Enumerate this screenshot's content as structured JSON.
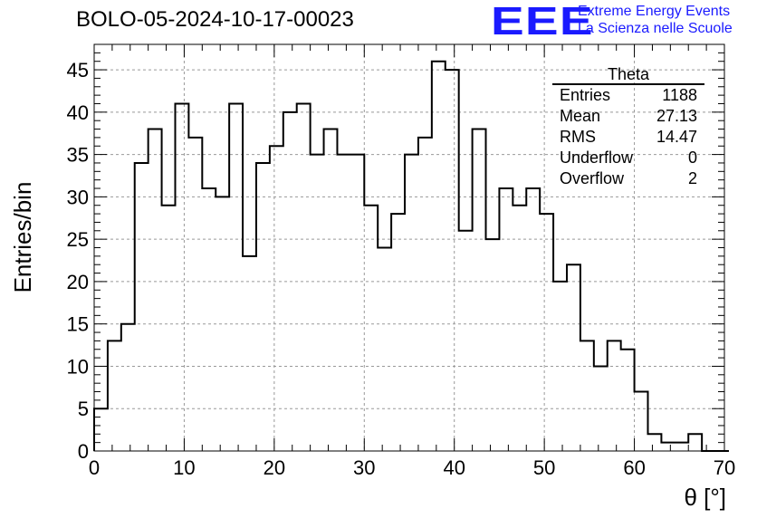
{
  "header": {
    "title": "BOLO-05-2024-10-17-00023",
    "logo_mark": "EEE",
    "logo_line1": "Extreme Energy Events",
    "logo_line2": "La Scienza nelle Scuole"
  },
  "stats_box": {
    "title": "Theta",
    "rows": [
      {
        "label": "Entries",
        "value": "1188"
      },
      {
        "label": "Mean",
        "value": "27.13"
      },
      {
        "label": "RMS",
        "value": "14.47"
      },
      {
        "label": "Underflow",
        "value": "0"
      },
      {
        "label": "Overflow",
        "value": "2"
      }
    ]
  },
  "chart_data": {
    "type": "bar",
    "histogram": true,
    "title": "BOLO-05-2024-10-17-00023",
    "xlabel": "θ [°]",
    "ylabel": "Entries/bin",
    "xlim": [
      0,
      70
    ],
    "ylim": [
      0,
      48
    ],
    "x_ticks": [
      0,
      10,
      20,
      30,
      40,
      50,
      60,
      70
    ],
    "y_ticks": [
      0,
      5,
      10,
      15,
      20,
      25,
      30,
      35,
      40,
      45
    ],
    "grid": true,
    "bin_edges_start": 0,
    "bin_width": 1.5,
    "values": [
      5,
      13,
      15,
      34,
      38,
      29,
      41,
      37,
      31,
      30,
      41,
      23,
      34,
      36,
      40,
      41,
      35,
      38,
      35,
      35,
      29,
      24,
      28,
      35,
      37,
      46,
      45,
      26,
      38,
      25,
      31,
      29,
      31,
      28,
      20,
      22,
      13,
      10,
      13,
      12,
      7,
      2,
      1,
      1,
      2,
      0,
      0
    ]
  }
}
